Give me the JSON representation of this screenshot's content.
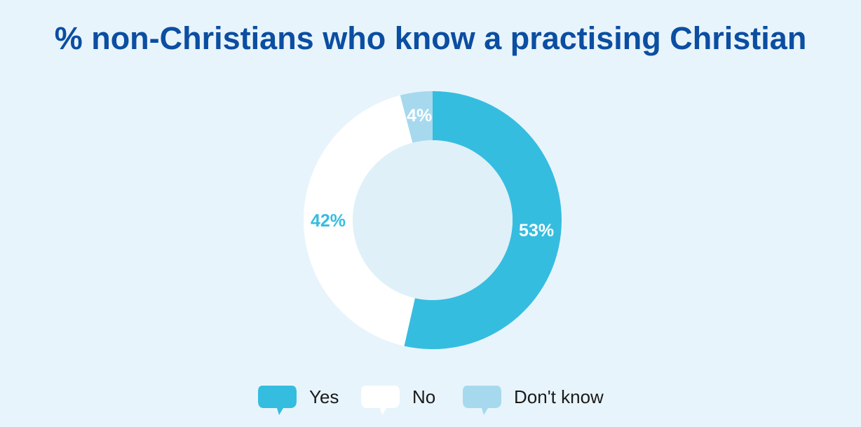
{
  "chart_data": {
    "type": "donut",
    "title": "% non-Christians who know a practising Christian",
    "categories": [
      "Yes",
      "No",
      "Don't know"
    ],
    "values": [
      53,
      42,
      4
    ],
    "value_labels": [
      "53%",
      "42%",
      "4%"
    ],
    "colors": [
      "#35bde0",
      "#ffffff",
      "#a6d9ee"
    ]
  }
}
